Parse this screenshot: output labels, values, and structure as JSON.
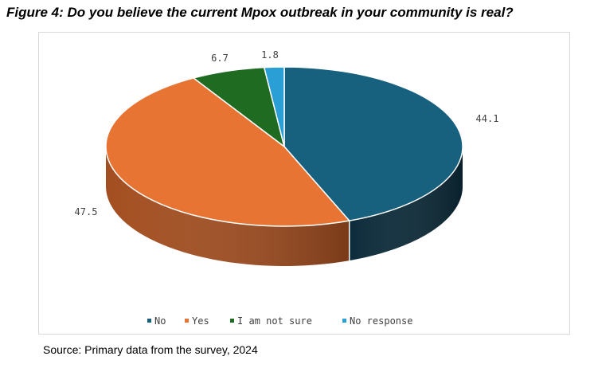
{
  "title": "Figure 4: Do you believe the current Mpox outbreak in your community is real?",
  "source": "Source: Primary data from the survey, 2024",
  "chart_data": {
    "type": "pie",
    "style": "3d",
    "slices": [
      {
        "label": "No",
        "value": 44.1,
        "color": "#17607e",
        "side_color": "#0c2b3a"
      },
      {
        "label": "Yes",
        "value": 47.5,
        "color": "#e87434",
        "side_color": "#a34e20"
      },
      {
        "label": "I am not sure",
        "value": 6.7,
        "color": "#1f6b21",
        "side_color": "#134515"
      },
      {
        "label": "No response",
        "value": 1.8,
        "color": "#2a9fd6",
        "side_color": "#1b6f97"
      }
    ],
    "data_labels": [
      "44.1",
      "47.5",
      "6.7",
      "1.8"
    ],
    "legend_placement": "bottom"
  }
}
